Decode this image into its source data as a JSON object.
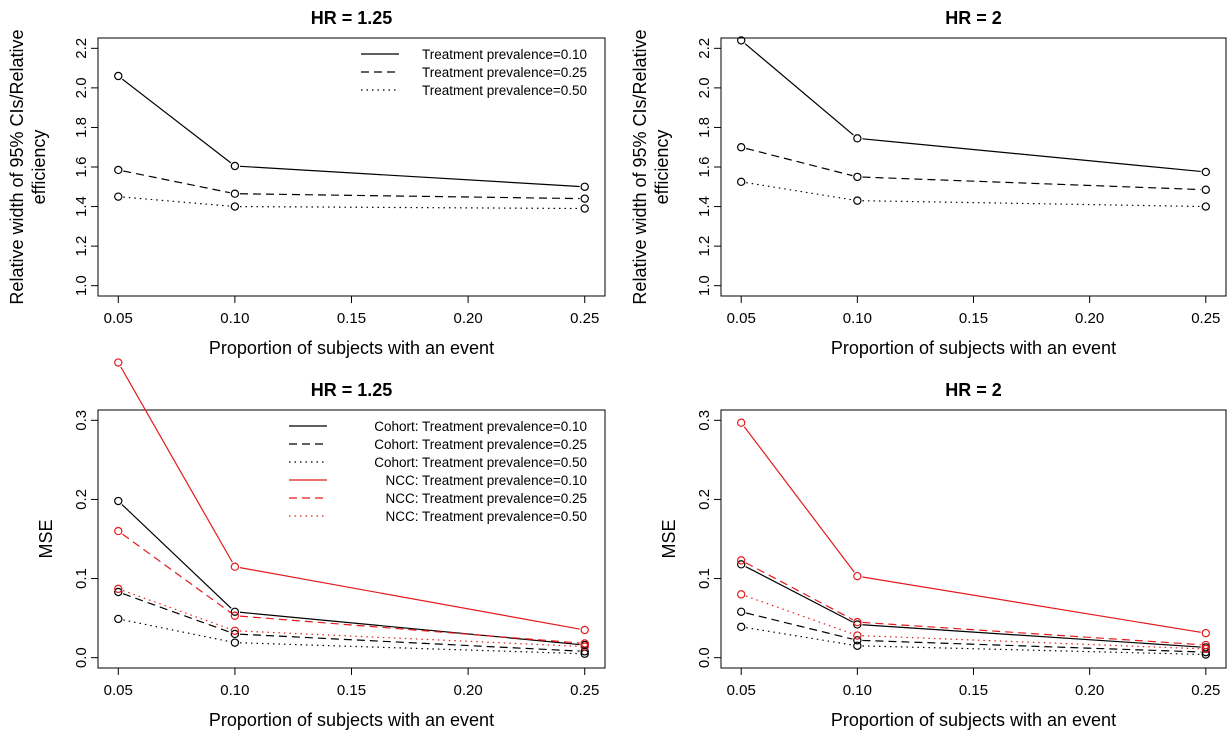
{
  "chart_data": [
    {
      "type": "line",
      "title": "HR = 1.25",
      "xlabel": "Proportion of subjects with an event",
      "ylabel": "Relative width of 95% CIs/Relative efficiency",
      "ylabel_lines": [
        "Relative width of 95% CIs/Relative",
        "efficiency"
      ],
      "x": [
        0.05,
        0.1,
        0.25
      ],
      "xlim": [
        0.05,
        0.25
      ],
      "ylim": [
        1.0,
        2.2
      ],
      "xticks": [
        "0.05",
        "0.10",
        "0.15",
        "0.20",
        "0.25"
      ],
      "xtick_values": [
        0.05,
        0.1,
        0.15,
        0.2,
        0.25
      ],
      "yticks": [
        "1.0",
        "1.2",
        "1.4",
        "1.6",
        "1.8",
        "2.0",
        "2.2"
      ],
      "ytick_values": [
        1.0,
        1.2,
        1.4,
        1.6,
        1.8,
        2.0,
        2.2
      ],
      "legend_position": "top-right",
      "series": [
        {
          "name": "Treatment prevalence=0.10",
          "values": [
            2.06,
            1.605,
            1.5
          ],
          "color": "#000000",
          "dash": "solid"
        },
        {
          "name": "Treatment prevalence=0.25",
          "values": [
            1.585,
            1.465,
            1.44
          ],
          "color": "#000000",
          "dash": "dashed"
        },
        {
          "name": "Treatment prevalence=0.50",
          "values": [
            1.45,
            1.4,
            1.39
          ],
          "color": "#000000",
          "dash": "dotted"
        }
      ]
    },
    {
      "type": "line",
      "title": "HR = 2",
      "xlabel": "Proportion of subjects with an event",
      "ylabel": "Relative width of 95% CIs/Relative efficiency",
      "ylabel_lines": [
        "Relative width of 95% CIs/Relative",
        "efficiency"
      ],
      "x": [
        0.05,
        0.1,
        0.25
      ],
      "xlim": [
        0.05,
        0.25
      ],
      "ylim": [
        1.0,
        2.2
      ],
      "xticks": [
        "0.05",
        "0.10",
        "0.15",
        "0.20",
        "0.25"
      ],
      "xtick_values": [
        0.05,
        0.1,
        0.15,
        0.2,
        0.25
      ],
      "yticks": [
        "1.0",
        "1.2",
        "1.4",
        "1.6",
        "1.8",
        "2.0",
        "2.2"
      ],
      "ytick_values": [
        1.0,
        1.2,
        1.4,
        1.6,
        1.8,
        2.0,
        2.2
      ],
      "series": [
        {
          "name": "",
          "values": [
            2.24,
            1.745,
            1.575
          ],
          "color": "#000000",
          "dash": "solid"
        },
        {
          "name": "",
          "values": [
            1.7,
            1.55,
            1.485
          ],
          "color": "#000000",
          "dash": "dashed"
        },
        {
          "name": "",
          "values": [
            1.525,
            1.43,
            1.4
          ],
          "color": "#000000",
          "dash": "dotted"
        }
      ]
    },
    {
      "type": "line",
      "title": "HR = 1.25",
      "xlabel": "Proportion of subjects with an event",
      "ylabel": "MSE",
      "ylabel_lines": [
        "MSE"
      ],
      "x": [
        0.05,
        0.1,
        0.25
      ],
      "xlim": [
        0.05,
        0.25
      ],
      "ylim": [
        0.0,
        0.3
      ],
      "xticks": [
        "0.05",
        "0.10",
        "0.15",
        "0.20",
        "0.25"
      ],
      "xtick_values": [
        0.05,
        0.1,
        0.15,
        0.2,
        0.25
      ],
      "yticks": [
        "0.0",
        "0.1",
        "0.2",
        "0.3"
      ],
      "ytick_values": [
        0.0,
        0.1,
        0.2,
        0.3
      ],
      "legend_position": "top-right",
      "series": [
        {
          "name": "Cohort: Treatment prevalence=0.10",
          "values": [
            0.198,
            0.058,
            0.016
          ],
          "color": "#000000",
          "dash": "solid"
        },
        {
          "name": "Cohort: Treatment prevalence=0.25",
          "values": [
            0.083,
            0.03,
            0.008
          ],
          "color": "#000000",
          "dash": "dashed"
        },
        {
          "name": "Cohort: Treatment prevalence=0.50",
          "values": [
            0.049,
            0.019,
            0.005
          ],
          "color": "#000000",
          "dash": "dotted"
        },
        {
          "name": "NCC: Treatment prevalence=0.10",
          "values": [
            0.373,
            0.115,
            0.035
          ],
          "color": "#e41a1c",
          "dash": "solid"
        },
        {
          "name": "NCC: Treatment prevalence=0.25",
          "values": [
            0.16,
            0.053,
            0.018
          ],
          "color": "#e41a1c",
          "dash": "dashed"
        },
        {
          "name": "NCC: Treatment prevalence=0.50",
          "values": [
            0.087,
            0.034,
            0.014
          ],
          "color": "#e41a1c",
          "dash": "dotted"
        }
      ]
    },
    {
      "type": "line",
      "title": "HR = 2",
      "xlabel": "Proportion of subjects with an event",
      "ylabel": "MSE",
      "ylabel_lines": [
        "MSE"
      ],
      "x": [
        0.05,
        0.1,
        0.25
      ],
      "xlim": [
        0.05,
        0.25
      ],
      "ylim": [
        0.0,
        0.3
      ],
      "xticks": [
        "0.05",
        "0.10",
        "0.15",
        "0.20",
        "0.25"
      ],
      "xtick_values": [
        0.05,
        0.1,
        0.15,
        0.2,
        0.25
      ],
      "yticks": [
        "0.0",
        "0.1",
        "0.2",
        "0.3"
      ],
      "ytick_values": [
        0.0,
        0.1,
        0.2,
        0.3
      ],
      "series": [
        {
          "name": "",
          "values": [
            0.118,
            0.042,
            0.013
          ],
          "color": "#000000",
          "dash": "solid"
        },
        {
          "name": "",
          "values": [
            0.058,
            0.022,
            0.007
          ],
          "color": "#000000",
          "dash": "dashed"
        },
        {
          "name": "",
          "values": [
            0.039,
            0.015,
            0.004
          ],
          "color": "#000000",
          "dash": "dotted"
        },
        {
          "name": "",
          "values": [
            0.297,
            0.103,
            0.031
          ],
          "color": "#e41a1c",
          "dash": "solid"
        },
        {
          "name": "",
          "values": [
            0.123,
            0.045,
            0.016
          ],
          "color": "#e41a1c",
          "dash": "dashed"
        },
        {
          "name": "",
          "values": [
            0.08,
            0.028,
            0.011
          ],
          "color": "#e41a1c",
          "dash": "dotted"
        }
      ]
    }
  ]
}
